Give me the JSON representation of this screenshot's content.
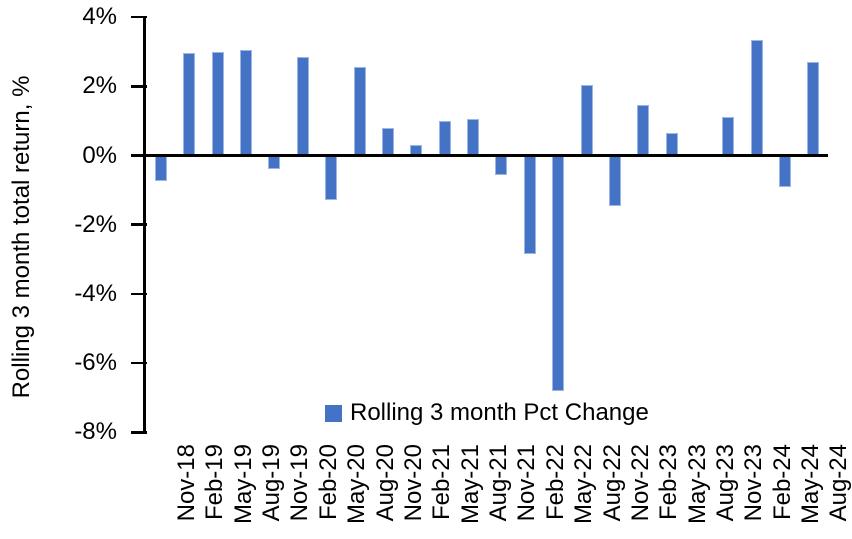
{
  "chart_data": {
    "type": "bar",
    "title": "",
    "ylabel": "Rolling 3 month total return, %",
    "xlabel": "",
    "legend_label": "Rolling 3 month Pct Change",
    "legend_position": "bottom-center",
    "grid": false,
    "ylim": [
      -8,
      4
    ],
    "categories": [
      "Nov-18",
      "Feb-19",
      "May-19",
      "Aug-19",
      "Nov-19",
      "Feb-20",
      "May-20",
      "Aug-20",
      "Nov-20",
      "Feb-21",
      "May-21",
      "Aug-21",
      "Nov-21",
      "Feb-22",
      "May-22",
      "Aug-22",
      "Nov-22",
      "Feb-23",
      "May-23",
      "Aug-23",
      "Nov-23",
      "Feb-24",
      "May-24",
      "Aug-24"
    ],
    "values": [
      -0.75,
      2.95,
      3.0,
      3.05,
      -0.4,
      2.85,
      -1.3,
      2.55,
      0.8,
      0.3,
      1.0,
      1.05,
      -0.55,
      -2.85,
      -6.8,
      2.05,
      -1.45,
      1.45,
      0.65,
      0.0,
      1.1,
      3.35,
      -0.9,
      2.7
    ],
    "yticks": [
      {
        "value": 4,
        "label": "4%"
      },
      {
        "value": 2,
        "label": "2%"
      },
      {
        "value": 0,
        "label": "0%"
      },
      {
        "value": -2,
        "label": "-2%"
      },
      {
        "value": -4,
        "label": "-4%"
      },
      {
        "value": -6,
        "label": "-6%"
      },
      {
        "value": -8,
        "label": "-8%"
      }
    ],
    "bar_color": "#4472C4",
    "bar_border_color": "#9DB5E2",
    "axis_color": "#000000",
    "text_color": "#000000"
  }
}
